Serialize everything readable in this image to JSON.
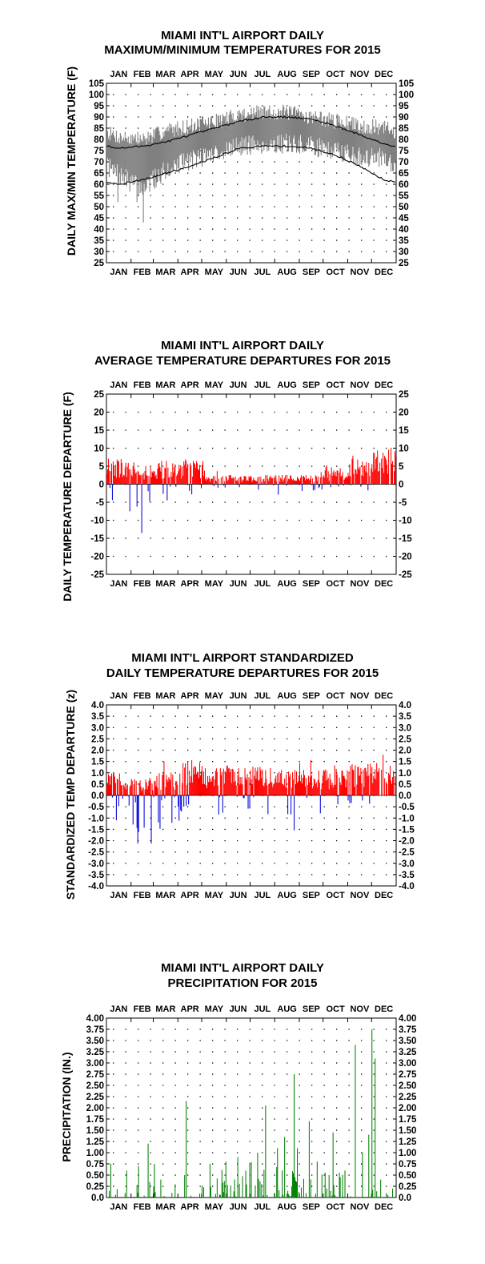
{
  "colors": {
    "positive": "#ff0000",
    "negative": "#0000dd",
    "precip": "#008000",
    "range": "#808080",
    "line": "#000000"
  },
  "chart_data": [
    {
      "type": "area",
      "title_line1": "MIAMI INT'L AIRPORT DAILY",
      "title_line2": "MAXIMUM/MINIMUM TEMPERATURES FOR 2015",
      "ylabel": "DAILY MAX/MIN TEMPERATURE (F)",
      "ylim": [
        25,
        105
      ],
      "yticks": [
        "25",
        "30",
        "35",
        "40",
        "45",
        "50",
        "55",
        "60",
        "65",
        "70",
        "75",
        "80",
        "85",
        "90",
        "95",
        "100",
        "105"
      ],
      "months": [
        "JAN",
        "FEB",
        "MAR",
        "APR",
        "MAY",
        "JUN",
        "JUL",
        "AUG",
        "SEP",
        "OCT",
        "NOV",
        "DEC"
      ],
      "grid": "dotted",
      "series": [
        {
          "name": "",
          "type": "normal_max",
          "month_values": [
            76,
            77,
            79,
            82,
            85,
            88,
            90,
            90,
            89,
            86,
            82,
            78
          ]
        },
        {
          "name": "",
          "type": "normal_min",
          "month_values": [
            60,
            62,
            65,
            68,
            72,
            76,
            77,
            77,
            76,
            73,
            68,
            62
          ]
        },
        {
          "name": "",
          "type": "observed_range",
          "month_max": [
            81,
            80,
            84,
            86,
            88,
            91,
            92,
            92,
            90,
            88,
            86,
            85
          ],
          "month_min": [
            64,
            58,
            67,
            71,
            74,
            77,
            78,
            78,
            77,
            75,
            72,
            72
          ],
          "extremes": [
            {
              "month": "FEB",
              "min": 43
            },
            {
              "month": "JAN",
              "min": 52
            }
          ]
        }
      ]
    },
    {
      "type": "bar",
      "title_line1": "MIAMI INT'L AIRPORT DAILY",
      "title_line2": "AVERAGE TEMPERATURE DEPARTURES FOR 2015",
      "ylabel": "DAILY TEMPERATURE DEPARTURE (F)",
      "ylim": [
        -25,
        25
      ],
      "yticks": [
        "-25",
        "-20",
        "-15",
        "-10",
        "-5",
        "0",
        "5",
        "10",
        "15",
        "20",
        "25"
      ],
      "months": [
        "JAN",
        "FEB",
        "MAR",
        "APR",
        "MAY",
        "JUN",
        "JUL",
        "AUG",
        "SEP",
        "OCT",
        "NOV",
        "DEC"
      ],
      "grid": "dotted",
      "month_profile": [
        [
          6,
          11,
          -8
        ],
        [
          4,
          8,
          -16
        ],
        [
          5,
          11,
          -7
        ],
        [
          5,
          10,
          -3
        ],
        [
          2,
          4,
          -1
        ],
        [
          2,
          4,
          -1
        ],
        [
          2,
          4,
          -2
        ],
        [
          2,
          3,
          -3
        ],
        [
          2,
          4,
          -2
        ],
        [
          3,
          6,
          -1
        ],
        [
          6,
          10,
          -2
        ],
        [
          8,
          13,
          0
        ]
      ]
    },
    {
      "type": "bar",
      "title_line1": "MIAMI INT'L AIRPORT STANDARDIZED",
      "title_line2": "DAILY TEMPERATURE DEPARTURES FOR 2015",
      "ylabel": "STANDARDIZED TEMP DEPARTURE (z)",
      "ylim": [
        -4,
        4
      ],
      "yticks": [
        "-4.0",
        "-3.5",
        "-3.0",
        "-2.5",
        "-2.0",
        "-1.5",
        "-1.0",
        "-0.5",
        "0.0",
        "0.5",
        "1.0",
        "1.5",
        "2.0",
        "2.5",
        "3.0",
        "3.5",
        "4.0"
      ],
      "months": [
        "JAN",
        "FEB",
        "MAR",
        "APR",
        "MAY",
        "JUN",
        "JUL",
        "AUG",
        "SEP",
        "OCT",
        "NOV",
        "DEC"
      ],
      "grid": "dotted",
      "month_profile": [
        [
          0.8,
          1.4,
          -1.2
        ],
        [
          0.6,
          1.2,
          -2.5
        ],
        [
          0.8,
          1.5,
          -1.5
        ],
        [
          1.2,
          2.5,
          -1.0
        ],
        [
          1.0,
          2.0,
          -1.0
        ],
        [
          1.0,
          2.0,
          -0.8
        ],
        [
          1.0,
          2.0,
          -1.5
        ],
        [
          0.9,
          1.8,
          -1.8
        ],
        [
          0.8,
          1.6,
          -1.2
        ],
        [
          0.9,
          1.5,
          -0.4
        ],
        [
          1.1,
          2.0,
          -0.5
        ],
        [
          1.2,
          1.8,
          0
        ]
      ]
    },
    {
      "type": "bar",
      "title_line1": "MIAMI INT'L AIRPORT DAILY",
      "title_line2": "PRECIPITATION FOR 2015",
      "ylabel": "PRECIPITATION (IN.)",
      "ylim": [
        0,
        4
      ],
      "yticks": [
        "0.0",
        "0.25",
        "0.50",
        "0.75",
        "1.00",
        "1.25",
        "1.50",
        "1.75",
        "2.00",
        "2.25",
        "2.50",
        "2.75",
        "3.00",
        "3.25",
        "3.50",
        "3.75",
        "4.00"
      ],
      "months": [
        "JAN",
        "FEB",
        "MAR",
        "APR",
        "MAY",
        "JUN",
        "JUL",
        "AUG",
        "SEP",
        "OCT",
        "NOV",
        "DEC"
      ],
      "grid": "dotted",
      "notable_days": [
        [
          5,
          0.75
        ],
        [
          25,
          0.6
        ],
        [
          40,
          0.7
        ],
        [
          52,
          1.2
        ],
        [
          60,
          0.75
        ],
        [
          68,
          0.4
        ],
        [
          100,
          2.15
        ],
        [
          98,
          0.5
        ],
        [
          130,
          0.75
        ],
        [
          150,
          0.8
        ],
        [
          165,
          0.9
        ],
        [
          175,
          0.6
        ],
        [
          190,
          1.0
        ],
        [
          200,
          2.05
        ],
        [
          215,
          1.1
        ],
        [
          224,
          1.35
        ],
        [
          236,
          2.75
        ],
        [
          240,
          1.1
        ],
        [
          255,
          1.7
        ],
        [
          265,
          0.8
        ],
        [
          280,
          0.5
        ],
        [
          285,
          1.45
        ],
        [
          300,
          0.6
        ],
        [
          313,
          3.4
        ],
        [
          322,
          1.0
        ],
        [
          330,
          1.4
        ],
        [
          334,
          3.75
        ],
        [
          338,
          3.1
        ],
        [
          345,
          0.4
        ],
        [
          360,
          0.2
        ]
      ]
    }
  ]
}
